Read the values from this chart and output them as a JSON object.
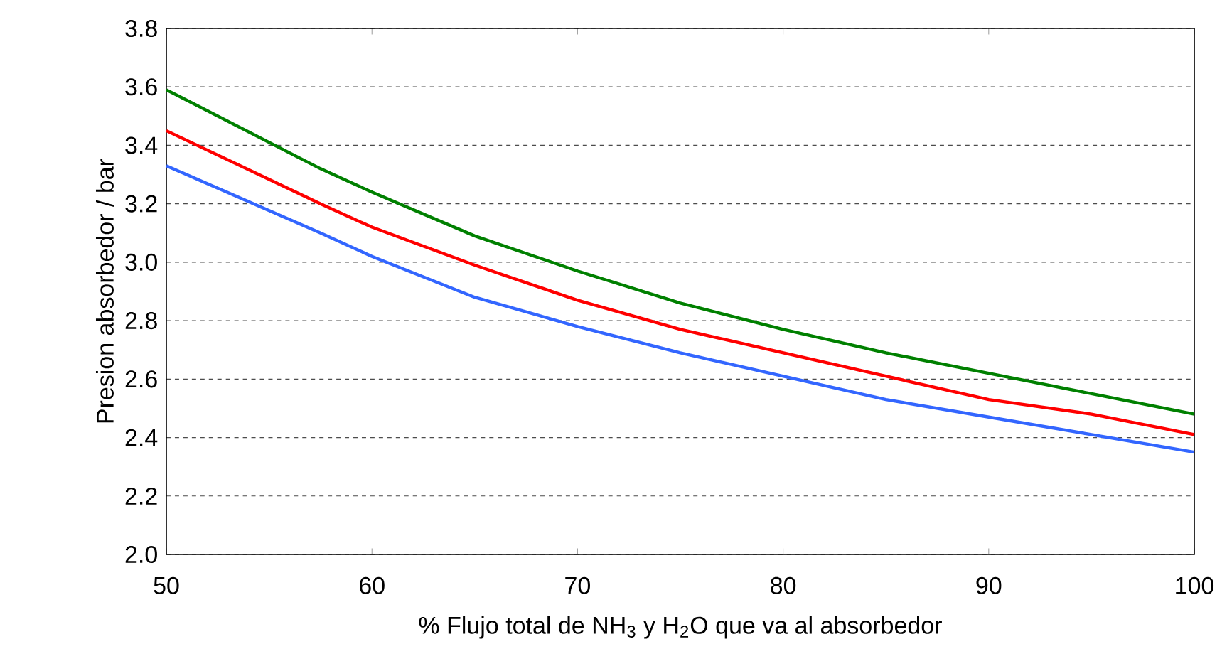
{
  "chart_data": {
    "type": "line",
    "xlabel": "% Flujo total de NH$_{3}$ y H$_{2}$O que va al absorbedor",
    "ylabel": "Presion absorbedor / bar",
    "x": [
      50,
      57.5,
      60,
      65,
      70,
      75,
      80,
      85,
      90,
      95,
      100
    ],
    "series": [
      {
        "color": "#008000",
        "values": [
          3.59,
          3.32,
          3.24,
          3.09,
          2.97,
          2.86,
          2.77,
          2.69,
          2.62,
          2.55,
          2.48
        ]
      },
      {
        "color": "#ff0000",
        "values": [
          3.45,
          3.2,
          3.12,
          2.99,
          2.87,
          2.77,
          2.69,
          2.61,
          2.53,
          2.48,
          2.41
        ]
      },
      {
        "color": "#3366ff",
        "values": [
          3.33,
          3.1,
          3.02,
          2.88,
          2.78,
          2.69,
          2.61,
          2.53,
          2.47,
          2.41,
          2.35
        ]
      }
    ],
    "xlim": [
      50,
      100
    ],
    "xticks": [
      50,
      60,
      70,
      80,
      90,
      100
    ],
    "ylim": [
      2.0,
      3.8
    ],
    "yticks": [
      {
        "value": 2.0,
        "label": "2.0"
      },
      {
        "value": 2.2,
        "label": "2.2"
      },
      {
        "value": 2.4,
        "label": "2.4"
      },
      {
        "value": 2.6,
        "label": "2.6"
      },
      {
        "value": 2.8,
        "label": "2.8"
      },
      {
        "value": 3.0,
        "label": "3.0"
      },
      {
        "value": 3.2,
        "label": "3.2"
      },
      {
        "value": 3.4,
        "label": "3.4"
      },
      {
        "value": 3.6,
        "label": "3.6"
      },
      {
        "value": 3.8,
        "label": "3.8"
      }
    ],
    "grid": "y",
    "marker": "none",
    "line_style": "solid"
  }
}
